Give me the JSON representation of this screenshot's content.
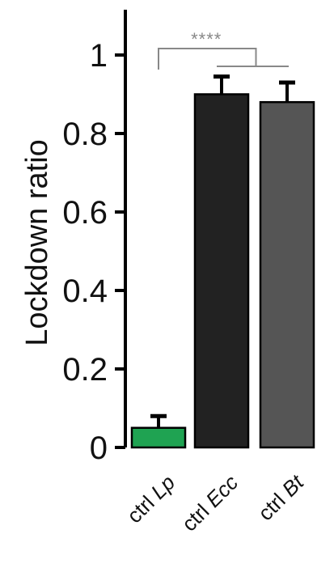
{
  "chart_data": {
    "type": "bar",
    "categories": [
      {
        "prefix": "ctrl",
        "species": "Lp"
      },
      {
        "prefix": "ctrl",
        "species": "Ecc"
      },
      {
        "prefix": "ctrl",
        "species": "Bt"
      }
    ],
    "values": [
      0.05,
      0.9,
      0.88
    ],
    "errors": [
      0.03,
      0.045,
      0.05
    ],
    "bar_colors": [
      "#1fa352",
      "#222222",
      "#555555"
    ],
    "ylabel": "Lockdown ratio",
    "ylim": [
      0,
      1.1
    ],
    "yticks": [
      0,
      0.2,
      0.4,
      0.6,
      0.8,
      1
    ],
    "ytick_labels": [
      "0",
      "0.2",
      "0.4",
      "0.6",
      "0.8",
      "1"
    ],
    "significance": {
      "text": "****",
      "from": 0,
      "to": [
        1,
        2
      ]
    },
    "grid": false,
    "legend": "none"
  }
}
